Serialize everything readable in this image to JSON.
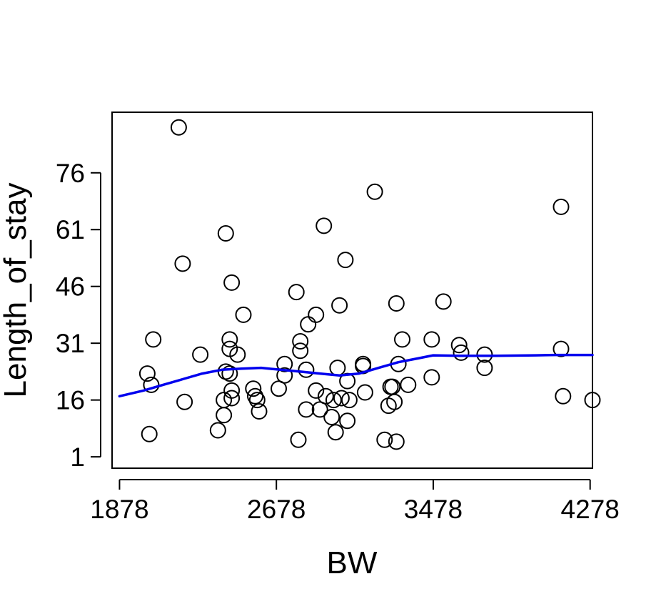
{
  "chart_data": {
    "type": "scatter",
    "title": "",
    "xlabel": "BW",
    "ylabel": "Length_of_stay",
    "xlim": [
      1840,
      4290
    ],
    "ylim": [
      -2,
      92
    ],
    "x_ticks": [
      1878,
      2678,
      3478,
      4278
    ],
    "y_ticks": [
      1,
      16,
      31,
      46,
      61,
      76
    ],
    "grid": false,
    "legend": "none",
    "colors": {
      "points": "#000000",
      "smooth": "#0000ee"
    },
    "points": [
      [
        2180,
        88
      ],
      [
        2200,
        52
      ],
      [
        2210,
        15.5
      ],
      [
        2020,
        23
      ],
      [
        2030,
        7
      ],
      [
        2050,
        32
      ],
      [
        2040,
        20
      ],
      [
        2290,
        28
      ],
      [
        2420,
        60
      ],
      [
        2450,
        47
      ],
      [
        2440,
        32
      ],
      [
        2440,
        29.5
      ],
      [
        2420,
        23.5
      ],
      [
        2440,
        23
      ],
      [
        2410,
        16
      ],
      [
        2410,
        12
      ],
      [
        2380,
        8
      ],
      [
        2450,
        18.5
      ],
      [
        2450,
        16.5
      ],
      [
        2480,
        28
      ],
      [
        2510,
        38.5
      ],
      [
        2560,
        19
      ],
      [
        2570,
        17
      ],
      [
        2580,
        16
      ],
      [
        2590,
        13
      ],
      [
        2690,
        19
      ],
      [
        2720,
        22.5
      ],
      [
        2720,
        25.5
      ],
      [
        2780,
        44.5
      ],
      [
        2790,
        5.5
      ],
      [
        2800,
        29
      ],
      [
        2800,
        31.5
      ],
      [
        2830,
        24
      ],
      [
        2830,
        13.5
      ],
      [
        2840,
        36
      ],
      [
        2880,
        38.5
      ],
      [
        2880,
        18.5
      ],
      [
        2900,
        13.5
      ],
      [
        2920,
        62
      ],
      [
        2930,
        17
      ],
      [
        2960,
        11.5
      ],
      [
        2970,
        16
      ],
      [
        2980,
        7.5
      ],
      [
        2990,
        24.5
      ],
      [
        3000,
        41
      ],
      [
        3010,
        16.5
      ],
      [
        3030,
        53
      ],
      [
        3040,
        21
      ],
      [
        3040,
        10.5
      ],
      [
        3050,
        16
      ],
      [
        3120,
        25.5
      ],
      [
        3120,
        25
      ],
      [
        3130,
        18
      ],
      [
        3180,
        71
      ],
      [
        3230,
        5.5
      ],
      [
        3250,
        14.5
      ],
      [
        3260,
        19.5
      ],
      [
        3270,
        19.5
      ],
      [
        3280,
        15.5
      ],
      [
        3290,
        41.5
      ],
      [
        3290,
        5
      ],
      [
        3300,
        25.5
      ],
      [
        3320,
        32
      ],
      [
        3350,
        20
      ],
      [
        3470,
        32
      ],
      [
        3470,
        22
      ],
      [
        3530,
        42
      ],
      [
        3610,
        30.5
      ],
      [
        3620,
        28.5
      ],
      [
        3740,
        28
      ],
      [
        3740,
        24.5
      ],
      [
        4130,
        67
      ],
      [
        4130,
        29.5
      ],
      [
        4140,
        17
      ],
      [
        4290,
        16
      ]
    ],
    "smooth_line": [
      [
        1878,
        17
      ],
      [
        2000,
        18.5
      ],
      [
        2100,
        20
      ],
      [
        2200,
        21.5
      ],
      [
        2300,
        23
      ],
      [
        2400,
        24
      ],
      [
        2500,
        24.3
      ],
      [
        2600,
        24.5
      ],
      [
        2700,
        24
      ],
      [
        2800,
        23.5
      ],
      [
        2900,
        23
      ],
      [
        3000,
        22.5
      ],
      [
        3100,
        23
      ],
      [
        3200,
        24.5
      ],
      [
        3300,
        26
      ],
      [
        3400,
        27
      ],
      [
        3478,
        27.8
      ],
      [
        3600,
        27.7
      ],
      [
        3800,
        27.7
      ],
      [
        4000,
        27.8
      ],
      [
        4100,
        27.9
      ],
      [
        4290,
        27.9
      ]
    ]
  }
}
